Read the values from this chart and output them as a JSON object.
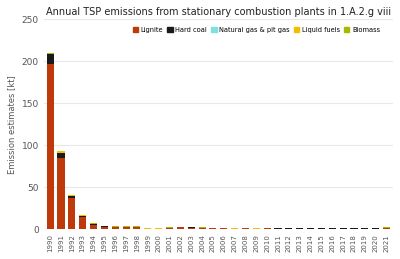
{
  "title": "Annual TSP emissions from stationary combustion plants in 1.A.2.g viii",
  "ylabel": "Emission estimates [kt]",
  "years": [
    1990,
    1991,
    1992,
    1993,
    1994,
    1995,
    1996,
    1997,
    1998,
    1999,
    2000,
    2001,
    2002,
    2003,
    2004,
    2005,
    2006,
    2007,
    2008,
    2009,
    2010,
    2011,
    2012,
    2013,
    2014,
    2015,
    2016,
    2017,
    2018,
    2019,
    2020,
    2021
  ],
  "lignite": [
    197,
    85,
    37,
    14,
    5.5,
    3.0,
    2.5,
    2.5,
    2.5,
    0.5,
    0.5,
    1.5,
    2.5,
    2.0,
    1.5,
    1.0,
    1.0,
    0.5,
    1.0,
    0.5,
    1.0,
    0.8,
    0.8,
    0.8,
    0.8,
    0.8,
    0.8,
    0.8,
    0.8,
    0.8,
    0.8,
    1.5
  ],
  "hard_coal": [
    11,
    6,
    3,
    2,
    1,
    0.5,
    0.5,
    0.4,
    0.3,
    0.2,
    0.2,
    0.2,
    0.2,
    0.2,
    0.2,
    0.2,
    0.2,
    0.2,
    0.2,
    0.2,
    0.2,
    0.2,
    0.2,
    0.2,
    0.2,
    0.2,
    0.2,
    0.2,
    0.2,
    0.2,
    0.2,
    0.2
  ],
  "natgas": [
    0.05,
    0.05,
    0.05,
    0.05,
    0.05,
    0.05,
    0.05,
    0.05,
    0.05,
    0.05,
    0.05,
    0.05,
    0.05,
    0.05,
    0.05,
    0.05,
    0.05,
    0.05,
    0.05,
    0.05,
    0.05,
    0.05,
    0.05,
    0.05,
    0.05,
    0.05,
    0.05,
    0.05,
    0.05,
    0.05,
    0.05,
    0.05
  ],
  "liquid_fuels": [
    1.0,
    1.5,
    0.5,
    0.3,
    0.2,
    0.2,
    0.15,
    0.15,
    0.15,
    0.15,
    0.15,
    0.15,
    0.15,
    0.15,
    0.15,
    0.15,
    0.15,
    0.15,
    0.15,
    0.15,
    0.15,
    0.15,
    0.15,
    0.15,
    0.15,
    0.15,
    0.15,
    0.15,
    0.15,
    0.15,
    0.15,
    0.15
  ],
  "biomass": [
    0.3,
    0.3,
    0.3,
    0.3,
    0.3,
    0.3,
    0.3,
    0.3,
    0.3,
    0.3,
    0.3,
    0.3,
    0.3,
    0.3,
    0.3,
    0.3,
    0.3,
    0.3,
    0.3,
    0.3,
    0.3,
    0.3,
    0.3,
    0.3,
    0.3,
    0.3,
    0.3,
    0.3,
    0.3,
    0.3,
    0.3,
    0.3
  ],
  "color_lignite": "#c0390b",
  "color_hard_coal": "#1a1a1a",
  "color_natgas": "#7fe0e0",
  "color_liquid_fuels": "#f0c000",
  "color_biomass": "#a8b800",
  "ylim": [
    0,
    250
  ],
  "yticks": [
    0,
    50,
    100,
    150,
    200,
    250
  ],
  "legend_labels": [
    "Lignite",
    "Hard coal",
    "Natural gas & pit gas",
    "Liquid fuels",
    "Biomass"
  ],
  "bg_color": "#ffffff"
}
